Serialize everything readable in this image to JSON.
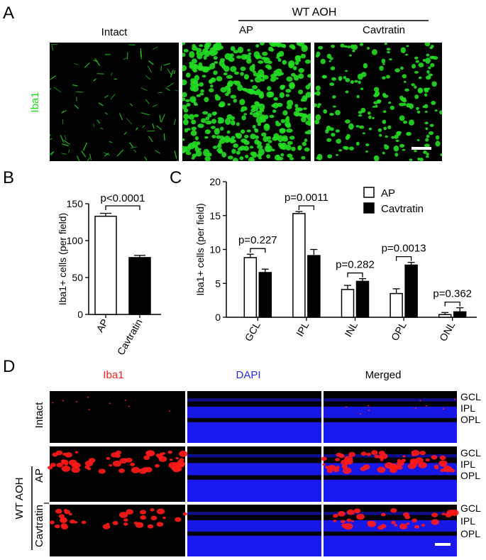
{
  "panel_a": {
    "letter": "A",
    "group_label": "WT  AOH",
    "titles": [
      "Intact",
      "AP",
      "Cavtratin"
    ],
    "row_label": "Iba1",
    "colors": {
      "stain": "#22dd22",
      "background": "#000000",
      "scale_bar": "#ffffff"
    }
  },
  "panel_b": {
    "letter": "B"
  },
  "panel_c": {
    "letter": "C"
  },
  "panel_d": {
    "letter": "D",
    "column_titles": [
      "Iba1",
      "DAPI",
      "Merged"
    ],
    "column_colors": [
      "#ff2020",
      "#2a2aff",
      "#000000"
    ],
    "row_labels": [
      "Intact",
      "AP",
      "Cavtratin"
    ],
    "group_label": "WT  AOH",
    "layer_labels": [
      "GCL",
      "IPL",
      "OPL"
    ],
    "colors": {
      "iba1": "#ff1a1a",
      "dapi": "#1a1aff"
    }
  },
  "chart_data": [
    {
      "type": "bar",
      "categories": [
        "AP",
        "Cavtratin"
      ],
      "values": [
        133,
        77
      ],
      "errors": [
        4,
        3
      ],
      "fills": [
        "#ffffff",
        "#000000"
      ],
      "xlabel": "",
      "ylabel": "Iba1+ cells (per field)",
      "ylim": [
        0,
        150
      ],
      "yticks": [
        0,
        50,
        100,
        150
      ],
      "annotations": [
        {
          "text": "p<0.0001",
          "between": [
            "AP",
            "Cavtratin"
          ]
        }
      ]
    },
    {
      "type": "bar",
      "categories": [
        "GCL",
        "IPL",
        "INL",
        "OPL",
        "ONL"
      ],
      "series": [
        {
          "name": "AP",
          "values": [
            8.8,
            15.3,
            4.1,
            3.5,
            0.4
          ],
          "errors": [
            0.5,
            0.3,
            0.6,
            0.7,
            0.3
          ],
          "fill": "#ffffff"
        },
        {
          "name": "Cavtratin",
          "values": [
            6.6,
            9.1,
            5.3,
            7.7,
            0.8
          ],
          "errors": [
            0.5,
            0.9,
            0.4,
            0.4,
            0.6
          ],
          "fill": "#000000"
        }
      ],
      "xlabel": "",
      "ylabel": "Iba1+ cells (per field)",
      "ylim": [
        0,
        20
      ],
      "yticks": [
        0,
        5,
        10,
        15,
        20
      ],
      "legend": "top-right",
      "annotations": [
        "p=0.227",
        "p=0.0011",
        "p=0.282",
        "p=0.0013",
        "p=0.362"
      ]
    }
  ]
}
